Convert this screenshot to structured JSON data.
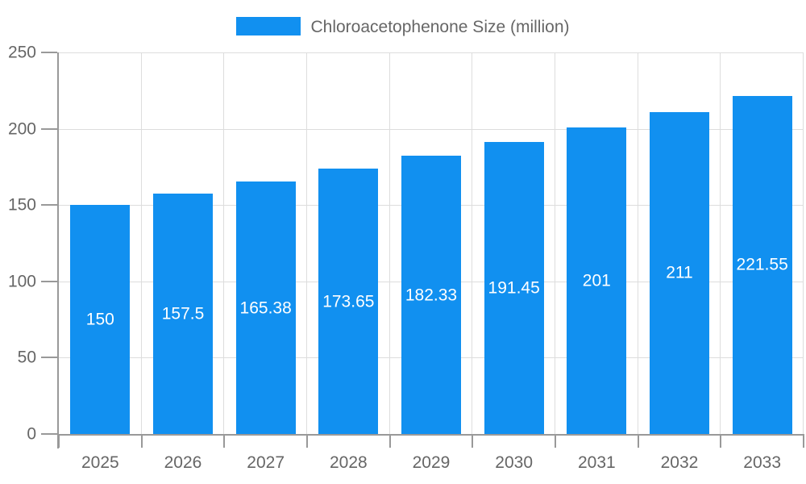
{
  "chart_data": {
    "type": "bar",
    "title": "",
    "legend": "Chloroacetophenone Size (million)",
    "legend_position": "top-center",
    "categories": [
      "2025",
      "2026",
      "2027",
      "2028",
      "2029",
      "2030",
      "2031",
      "2032",
      "2033"
    ],
    "values": [
      150,
      157.5,
      165.38,
      173.65,
      182.33,
      191.45,
      201,
      211,
      221.55
    ],
    "value_labels": [
      "150",
      "157.5",
      "165.38",
      "173.65",
      "182.33",
      "191.45",
      "201",
      "211",
      "221.55"
    ],
    "xlabel": "",
    "ylabel": "",
    "ylim": [
      0,
      250
    ],
    "yticks": [
      0,
      50,
      100,
      150,
      200,
      250
    ],
    "ytick_labels": [
      "0",
      "50",
      "100",
      "150",
      "200",
      "250"
    ],
    "grid": true,
    "colors": {
      "bar": "#1190f0",
      "axis": "#999999",
      "grid": "#dddddd",
      "tick_text": "#666666",
      "legend_text": "#666666",
      "value_label": "#ffffff",
      "background": "#ffffff"
    }
  }
}
